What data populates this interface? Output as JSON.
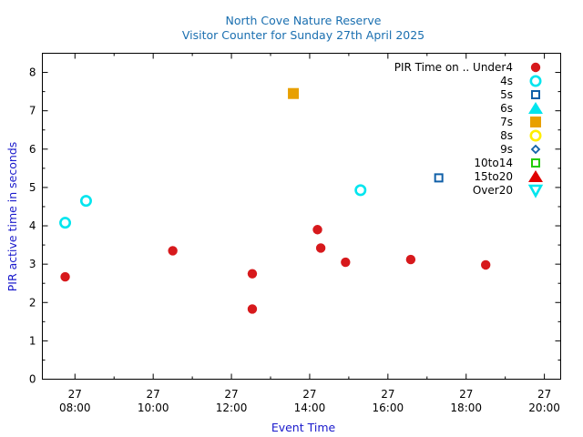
{
  "chart_data": {
    "type": "scatter",
    "title": "North Cove Nature Reserve",
    "subtitle": "Visitor Counter for Sunday 27th April 2025",
    "xlabel": "Event Time",
    "ylabel": "PIR active time in seconds",
    "xlim": [
      "07:10",
      "20:25"
    ],
    "ylim": [
      0,
      8.5
    ],
    "x_ticks": [
      {
        "day": "27",
        "time": "08:00"
      },
      {
        "day": "27",
        "time": "10:00"
      },
      {
        "day": "27",
        "time": "12:00"
      },
      {
        "day": "27",
        "time": "14:00"
      },
      {
        "day": "27",
        "time": "16:00"
      },
      {
        "day": "27",
        "time": "18:00"
      },
      {
        "day": "27",
        "time": "20:00"
      }
    ],
    "y_ticks": [
      0,
      1,
      2,
      3,
      4,
      5,
      6,
      7,
      8
    ],
    "grid": false,
    "legend_position": "top-right",
    "legend_title": "PIR Time on ..",
    "series": [
      {
        "name": "Under4",
        "marker": "filled-circle",
        "color": "#d7191c",
        "points": [
          {
            "x": "07:45",
            "y": 2.67
          },
          {
            "x": "10:30",
            "y": 3.35
          },
          {
            "x": "12:32",
            "y": 2.75
          },
          {
            "x": "12:32",
            "y": 1.83
          },
          {
            "x": "14:12",
            "y": 3.9
          },
          {
            "x": "14:17",
            "y": 3.42
          },
          {
            "x": "14:55",
            "y": 3.05
          },
          {
            "x": "16:35",
            "y": 3.12
          },
          {
            "x": "18:30",
            "y": 2.98
          }
        ]
      },
      {
        "name": "4s",
        "marker": "open-circle",
        "color": "#00e5ee",
        "points": [
          {
            "x": "07:45",
            "y": 4.08
          },
          {
            "x": "08:17",
            "y": 4.65
          },
          {
            "x": "15:18",
            "y": 4.93
          }
        ]
      },
      {
        "name": "5s",
        "marker": "open-square",
        "color": "#1060a8",
        "points": [
          {
            "x": "17:18",
            "y": 5.25
          }
        ]
      },
      {
        "name": "6s",
        "marker": "filled-triangle",
        "color": "#00e5ee",
        "points": []
      },
      {
        "name": "7s",
        "marker": "filled-square",
        "color": "#e8a000",
        "points": [
          {
            "x": "13:35",
            "y": 7.45
          }
        ]
      },
      {
        "name": "8s",
        "marker": "open-circle",
        "color": "#ffee00",
        "points": []
      },
      {
        "name": "9s",
        "marker": "open-diamond",
        "color": "#1060a8",
        "points": []
      },
      {
        "name": "10to14",
        "marker": "open-square",
        "color": "#22cc00",
        "points": []
      },
      {
        "name": "15to20",
        "marker": "filled-triangle",
        "color": "#e00000",
        "points": []
      },
      {
        "name": "Over20",
        "marker": "open-triangle-down",
        "color": "#00e5ee",
        "points": []
      }
    ]
  }
}
